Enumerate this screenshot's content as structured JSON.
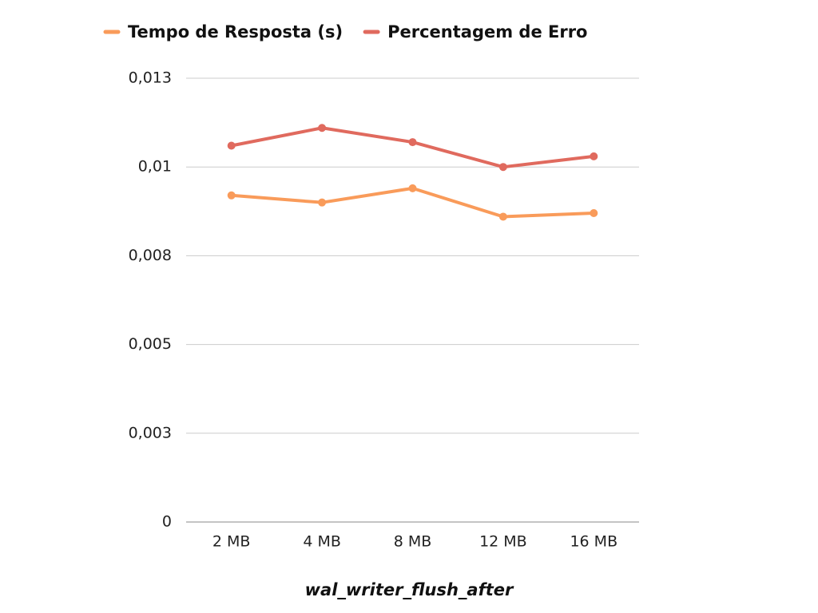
{
  "chart_data": {
    "type": "line",
    "x_label": "wal_writer_flush_after",
    "categories": [
      "2 MB",
      "4 MB",
      "8 MB",
      "12 MB",
      "16 MB"
    ],
    "series": [
      {
        "name": "Tempo de Resposta (s)",
        "color": "#f99b5a",
        "values": [
          0.0092,
          0.009,
          0.0094,
          0.0086,
          0.0087
        ]
      },
      {
        "name": "Percentagem de Erro",
        "color": "#e06a5e",
        "values": [
          0.0106,
          0.0111,
          0.0107,
          0.01,
          0.0103
        ]
      }
    ],
    "ylim": [
      0,
      0.0125
    ],
    "yticks": [
      0,
      {
        "value": 0.0025,
        "label": "0,003"
      },
      {
        "value": 0.005,
        "label": "0,005"
      },
      {
        "value": 0.0075,
        "label": "0,008"
      },
      {
        "value": 0.01,
        "label": "0,01"
      },
      {
        "value": 0.0125,
        "label": "0,013"
      }
    ],
    "grid": true,
    "legend": "top"
  }
}
